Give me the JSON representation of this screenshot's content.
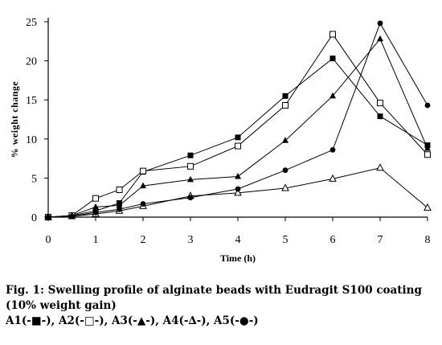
{
  "chart_data": {
    "type": "line",
    "xlabel": "Time (h)",
    "ylabel": "% weight change",
    "xlim": [
      0,
      8
    ],
    "ylim": [
      0,
      25
    ],
    "x_ticks": [
      0,
      1,
      2,
      3,
      4,
      5,
      6,
      7,
      8
    ],
    "y_ticks": [
      0,
      5,
      10,
      15,
      20,
      25
    ],
    "grid": false,
    "legend": "none",
    "series": [
      {
        "name": "A1",
        "marker": "filled-square",
        "x": [
          0,
          0.5,
          1,
          1.5,
          2,
          3,
          4,
          5,
          6,
          7,
          8
        ],
        "y": [
          0,
          0.2,
          0.8,
          1.8,
          5.8,
          7.9,
          10.2,
          15.5,
          20.3,
          12.9,
          9.2
        ]
      },
      {
        "name": "A2",
        "marker": "open-square",
        "x": [
          0,
          0.5,
          1,
          1.5,
          2,
          3,
          4,
          5,
          6,
          7,
          8
        ],
        "y": [
          0,
          0.2,
          2.4,
          3.5,
          5.9,
          6.5,
          9.1,
          14.3,
          23.4,
          14.6,
          8.0
        ]
      },
      {
        "name": "A3",
        "marker": "filled-triangle",
        "x": [
          0,
          0.5,
          1,
          1.5,
          2,
          3,
          4,
          5,
          6,
          7,
          8
        ],
        "y": [
          0,
          0.2,
          1.3,
          1.5,
          4.0,
          4.8,
          5.2,
          9.8,
          15.5,
          22.8,
          8.8
        ]
      },
      {
        "name": "A4",
        "marker": "open-triangle",
        "x": [
          0,
          0.5,
          1,
          1.5,
          2,
          3,
          4,
          5,
          6,
          7,
          8
        ],
        "y": [
          0,
          0.1,
          0.4,
          0.8,
          1.4,
          2.7,
          3.1,
          3.7,
          4.9,
          6.3,
          1.2
        ]
      },
      {
        "name": "A5",
        "marker": "filled-circle",
        "x": [
          0,
          0.5,
          1,
          1.5,
          2,
          3,
          4,
          5,
          6,
          7,
          8
        ],
        "y": [
          0,
          0.1,
          0.6,
          1.0,
          1.7,
          2.5,
          3.6,
          6.0,
          8.6,
          24.8,
          14.3
        ]
      }
    ]
  },
  "caption": {
    "line1": "Fig. 1: Swelling profile of alginate beads with Eudragit S100 coating",
    "line2": "(10% weight gain)",
    "line3": "A1(-■-), A2(-□-), A3(-▲-), A4(-∆-), A5(-●-)"
  }
}
